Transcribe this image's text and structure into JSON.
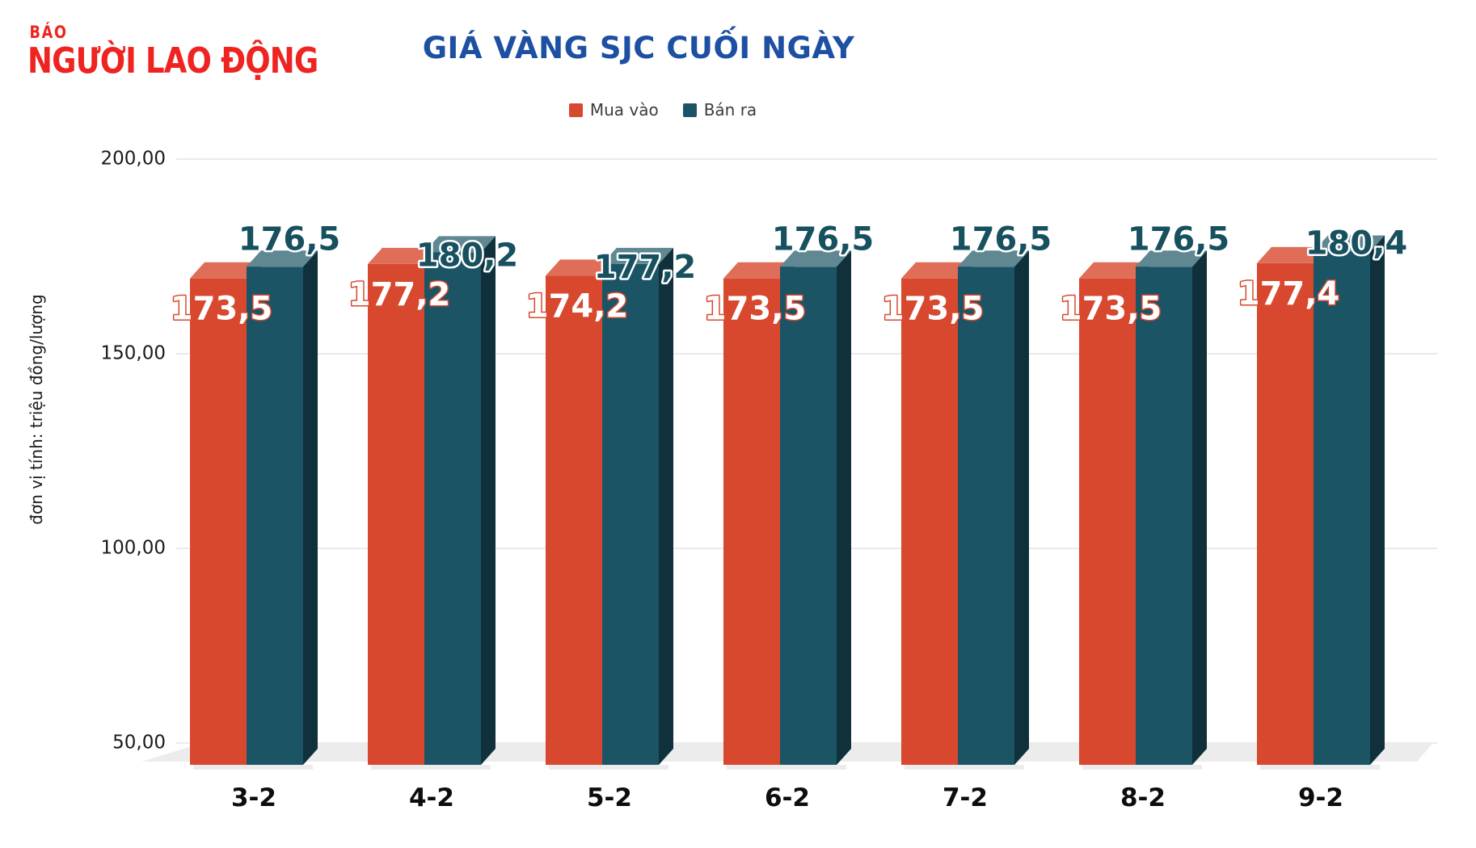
{
  "brand": {
    "small": "BÁO",
    "large": "NGƯỜI LAO ĐỘNG",
    "color": "#ee2420"
  },
  "title": {
    "text": "GIÁ VÀNG SJC CUỐI NGÀY",
    "color": "#1d50a2"
  },
  "legend": [
    {
      "label": "Mua vào",
      "color": "#d7482e"
    },
    {
      "label": "Bán ra",
      "color": "#1b5565"
    }
  ],
  "y_axis": {
    "title": "đơn vị tính: triệu đồng/lượng",
    "ticks": [
      {
        "label": "200,00",
        "value": 200
      },
      {
        "label": "150,00",
        "value": 150
      },
      {
        "label": "100,00",
        "value": 100
      },
      {
        "label": "50,00",
        "value": 50
      }
    ]
  },
  "chart_data": {
    "type": "bar",
    "style": "3d-column",
    "title": "GIÁ VÀNG SJC CUỐI NGÀY",
    "ylabel": "đơn vị tính: triệu đồng/lượng",
    "ylim": [
      50,
      200
    ],
    "grid": true,
    "legend_position": "top",
    "categories": [
      "3-2",
      "4-2",
      "5-2",
      "6-2",
      "7-2",
      "8-2",
      "9-2"
    ],
    "series": [
      {
        "name": "Mua vào",
        "color": "#d7482e",
        "values": [
          173.5,
          177.2,
          174.2,
          173.5,
          173.5,
          173.5,
          177.4
        ],
        "labels": [
          "173,5",
          "177,2",
          "174,2",
          "173,5",
          "173,5",
          "173,5",
          "177,4"
        ]
      },
      {
        "name": "Bán ra",
        "color": "#1b5565",
        "values": [
          176.5,
          180.2,
          177.2,
          176.5,
          176.5,
          176.5,
          180.4
        ],
        "labels": [
          "176,5",
          "180,2",
          "177,2",
          "176,5",
          "176,5",
          "176,5",
          "180,4"
        ]
      }
    ]
  }
}
